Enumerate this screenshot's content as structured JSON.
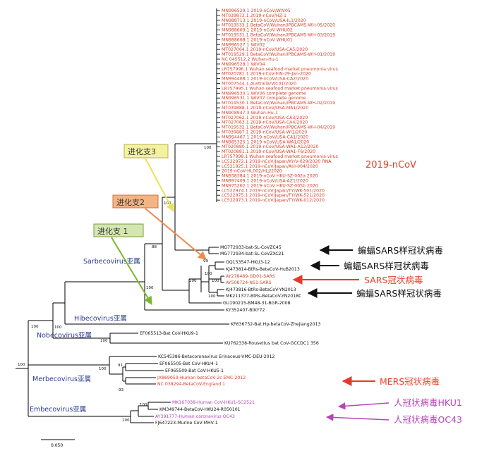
{
  "ncov_taxa": [
    "MN996529.1 2019-nCoV/WIV05",
    "MT039873.1 2019-nCoV/HZ-1",
    "MN988713.1 2019-nCoV/USA-IL1/2020",
    "MT019533.1 BetaCoV/Wuhan/IPBCAMS-WH-05/2020",
    "MN988669.1 2019-nCoV WHU02",
    "MT019531.1 BetaCoV/Wuhan/IPBCAMS-WH-03/2019",
    "MN988668.1 2019-nCoV WHU01",
    "MN996527.1 WIV02",
    "MT027064.1 2019-nCoV/USA-CA5/2020",
    "MT019529.1 BetaCoV/Wuhan/IPBCAMS-WH-01/2019",
    "NC 045512.2 Wuhan-Hu-1",
    "MN996528.1 WIV04",
    "LR757996.1 Wuhan seafood market pneumonia virus",
    "MT020781.1 2019-nCoV-FIN-29-Jan-2020",
    "MN994468.1 2019-nCoV/USA-CA2/2020",
    "MT007544.1 Australia/VIC01/2020",
    "LR757995.1 Wuhan seafood market pneumonia virus",
    "MN996530.1 WIV06 complete genome",
    "MN996531.1 WIV07 complete genome",
    "MT019530.1 BetaCoV/Wuhan/IPBCAMS-WH-02/2019",
    "MT039888.1 2019-nCoV/USA-MA1/2020",
    "MN908947.3 Wuhan-Hu-1",
    "MT027062.1 2019-nCoV/USA-CA3/2020",
    "MT027063.1 2019-nCoV/USA-CA4/2020",
    "MT019532.1 BetaCoV/Wuhan/IPBCAMS-WH-04/2019",
    "MT039887.1 2019-nCoV/USA-WI1/2020",
    "MN994467.1 2019-nCoV/USA-CA1/2020",
    "MN985325.1 2019-nCoV/USA-WA1/2020",
    "MT020880.1 2019-nCoV/USA-WA1-A12/2020",
    "MT020881.1 2019-nCoV/USA-WA1-F6/2020",
    "LR757998.1 Wuhan seafood market pneumonia virus",
    "LC522972.1 2019-nCoV/Japan/KY/V-029/2020 RNA",
    "LC521925.1 2019-nCoV/Japan/AI/I-004/2020",
    "2019-nCoV-HL002/HLJ/2020",
    "MN938384.1 2019-nCoV HKU-SZ-002a 2020",
    "MN997409.1 2019-nCoV/USA-AZ1/2020",
    "MN975262.1 2019-nCoV HKU-SZ-005b 2020",
    "LC522974.1 2019-nCoV/Japan/TY/WK-501/2020",
    "LC522975.1 2019-nCoV/Japan/TY/WK-521/2020",
    "LC522973.1 2019-nCoV/Japan/TY/WK-012/2020"
  ],
  "other_taxa": {
    "bat_zc45": "MG772933-bat-SL-CoVZC45",
    "bat_zxc21": "MG772934-bat-SL-CoVZXC21",
    "hku3": "GQ153547-HKU3-12",
    "bm_hub2013": "KJ473814-BtRs-BetaCoV-HuB2013",
    "sars_gd01": "AY278489-GD01-SARS",
    "sars_ns1": "AY508724-NS1-SARS",
    "bm_yn2013": "KJ473816-BtRs-BetaCoV-YN2013",
    "bm_yn2018c": "MK211377-BtRs-BetaCoV-YN2018C",
    "bm48": "GU190215-BM48-31-BGR-2008",
    "btky72": "KY352407-BtKY72",
    "zhejiang": "KF636752-Bat Hp-betaCoV-Zhejiang2013",
    "hku9": "EF065513-Bat CoV-HKU9-1",
    "gccdc1": "KU762338-Rousettus bat CoV-GCCDC1 356",
    "erinaceus": "KC545386-Betacoronavirus Erinaceus-VMC-DEU-2012",
    "hku4": "EF065505-Bat CoV-HKU4-1",
    "hku5": "EF065509-Bat CoV-HKU5-1",
    "mers_emc": "JX869059-Human betaCoV-2c EMC-2012",
    "mers_nc": "NC 038294-BetaCoV-England 1",
    "hku1": "MK167038-Human CoV-HKU1-SC2521",
    "hku24": "KM349744-BetaCoV-HKU24-R050101",
    "oc43": "AY391777-Human coronavirus OC43",
    "mhv": "FJ647223-Murine CoV-MHV-1"
  },
  "bootstrap": [
    "100",
    "100",
    "88",
    "99",
    "100",
    "100",
    "100",
    "100",
    "100",
    "100",
    "100",
    "100",
    "100",
    "100",
    "91",
    "93",
    "100",
    "100"
  ],
  "annotations": {
    "ncov_label": "2019-nCoV",
    "lineage1": "进化支 1",
    "lineage2": "进化支2",
    "lineage3": "进化支3",
    "bat_sars_1": "蝙蝠SARS样冠状病毒",
    "bat_sars_2": "蝙蝠SARS样冠状病毒",
    "sars": "SARS冠状病毒",
    "bat_sars_3": "蝙蝠SARS样冠状病毒",
    "mers": "MERS冠状病毒",
    "hku1": "人冠状病毒HKU1",
    "oc43": "人冠状病毒OC43"
  },
  "subgenera": {
    "sarbecovirus": "Sarbecovirus亚属",
    "hibecovirus": "Hibecovirus亚属",
    "nobecovirus": "Nobecovirus亚属",
    "merbecovirus": "Merbecovirus亚属",
    "embecovirus": "Embecovirus亚属"
  },
  "scale_label": "0.050",
  "colors": {
    "branch": "#000000",
    "ncov_text": "#d8432c",
    "sars_text": "#e8402a",
    "mers_text": "#e8402a",
    "human_cov_text": "#b347b3",
    "subgenus_text": "#2b3a8f",
    "arrow_black": "#111111",
    "arrow_red": "#e33b2a",
    "arrow_purple": "#b347b3",
    "lineage1_fill": "#d6e6b2",
    "lineage1_stroke": "#7a9f3e",
    "lineage1_arrow": "#7ab72e",
    "lineage2_fill": "#f3b486",
    "lineage2_stroke": "#c8763c",
    "lineage2_arrow": "#f08a47",
    "lineage3_fill": "#f4f1a2",
    "lineage3_stroke": "#b9b246",
    "lineage3_arrow": "#e8e45a"
  }
}
